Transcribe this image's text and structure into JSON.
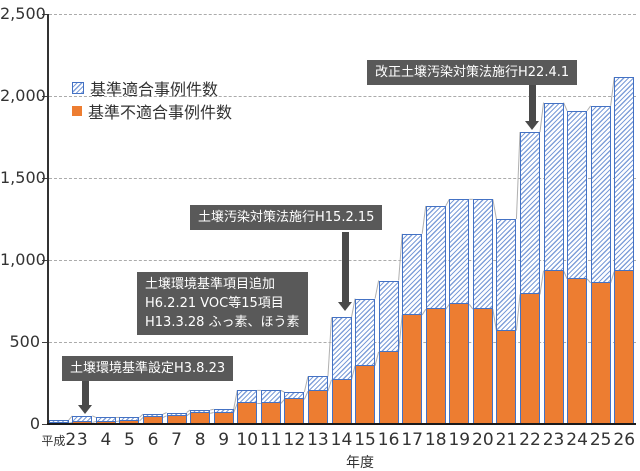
{
  "chart_data": {
    "type": "bar",
    "stacked": true,
    "xlabel": "年度",
    "ylabel": "",
    "ylim": [
      0,
      2500
    ],
    "y_tick_step": 500,
    "y_ticks": [
      "0",
      "500",
      "1,000",
      "1,500",
      "2,000",
      "2,500"
    ],
    "grid": "horizontal-dashed",
    "legend_position": "top-left-inside",
    "categories": [
      "平成2",
      "3",
      "4",
      "5",
      "6",
      "7",
      "8",
      "9",
      "10",
      "11",
      "12",
      "13",
      "14",
      "15",
      "16",
      "17",
      "18",
      "19",
      "20",
      "21",
      "22",
      "23",
      "24",
      "25",
      "26"
    ],
    "series": [
      {
        "name": "基準適合事例件数",
        "style": "hatched-blue",
        "stack_position": "top",
        "values": [
          20,
          40,
          25,
          22,
          20,
          20,
          20,
          20,
          80,
          80,
          45,
          90,
          380,
          410,
          435,
          495,
          630,
          640,
          670,
          680,
          990,
          1025,
          1025,
          1080,
          1185
        ]
      },
      {
        "name": "基準不適合事例件数",
        "style": "solid-orange",
        "stack_position": "bottom",
        "values": [
          5,
          10,
          15,
          18,
          40,
          50,
          65,
          70,
          125,
          125,
          150,
          200,
          270,
          355,
          440,
          665,
          700,
          730,
          700,
          570,
          790,
          935,
          885,
          860,
          930
        ]
      }
    ],
    "stack_totals": [
      25,
      50,
      40,
      40,
      60,
      70,
      85,
      90,
      205,
      205,
      195,
      290,
      650,
      765,
      875,
      1160,
      1330,
      1370,
      1370,
      1250,
      1780,
      1960,
      1910,
      1940,
      2115
    ],
    "annotations": [
      {
        "text_lines": [
          "土壌環境基準設定H3.8.23"
        ],
        "arrow_points_to": "平成3"
      },
      {
        "text_lines": [
          "土壌環境基準項目追加",
          "H6.2.21 VOC等15項目",
          "H13.3.28 ふっ素、ほう素"
        ],
        "arrow_points_to": null
      },
      {
        "text_lines": [
          "土壌汚染対策法施行H15.2.15"
        ],
        "arrow_points_to": "14"
      },
      {
        "text_lines": [
          "改正土壌汚染対策法施行H22.4.1"
        ],
        "arrow_points_to": "22"
      }
    ]
  },
  "colors": {
    "bar_border": "#4472C4",
    "hatch_line": "#7F9FD9",
    "nonconforming_fill": "#ED7D31",
    "annotation_bg": "#595959",
    "annotation_text": "#FFFFFF",
    "arrow": "#4A4A4A",
    "gridline": "#ABABAB",
    "axis": "#262626",
    "series_line": "#B0B0B0",
    "tick_label": "#333333"
  }
}
